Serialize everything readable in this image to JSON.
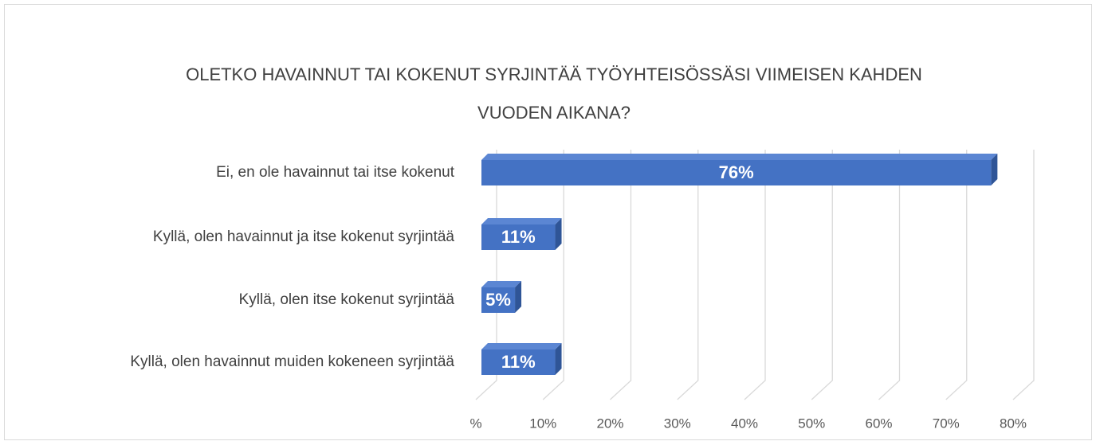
{
  "chart_data": {
    "type": "bar3d_horizontal",
    "title": "OLETKO HAVAINNUT TAI KOKENUT SYRJINTÄÄ TYÖYHTEISÖSSÄSI VIIMEISEN KAHDEN VUODEN AIKANA?",
    "categories": [
      "Ei, en ole havainnut tai itse kokenut",
      "Kyllä, olen havainnut ja itse kokenut syrjintää",
      "Kyllä, olen itse kokenut syrjintää",
      "Kyllä, olen havainnut muiden kokeneen syrjintää"
    ],
    "values": [
      76,
      11,
      5,
      11
    ],
    "value_labels": [
      "76%",
      "11%",
      "5%",
      "11%"
    ],
    "color": "#4472c4",
    "xlim": [
      0,
      80
    ],
    "xticks": [
      {
        "value": 0,
        "label": "%"
      },
      {
        "value": 10,
        "label": "10%"
      },
      {
        "value": 20,
        "label": "20%"
      },
      {
        "value": 30,
        "label": "30%"
      },
      {
        "value": 40,
        "label": "40%"
      },
      {
        "value": 50,
        "label": "50%"
      },
      {
        "value": 60,
        "label": "60%"
      },
      {
        "value": 70,
        "label": "70%"
      },
      {
        "value": 80,
        "label": "80%"
      }
    ],
    "grid": true
  }
}
